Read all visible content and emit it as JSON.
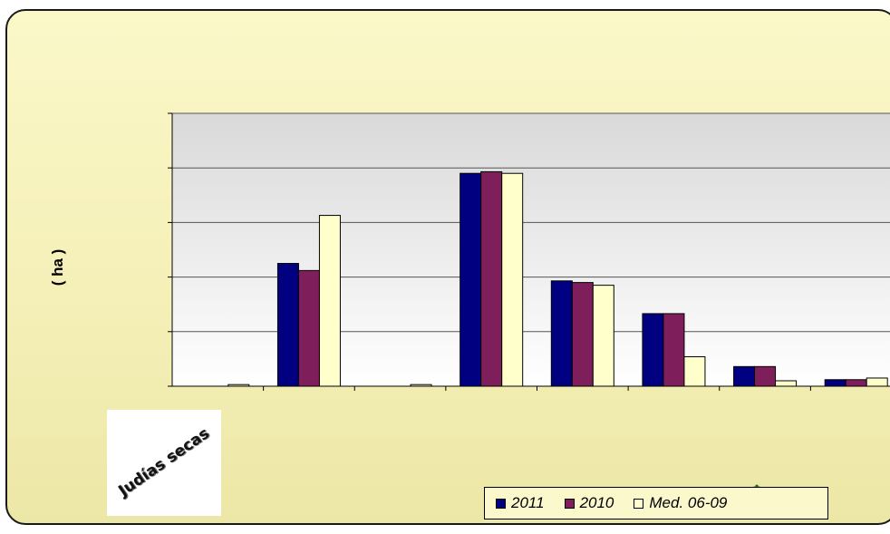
{
  "chart_data": {
    "type": "bar",
    "ylabel": "( ha )",
    "ylim": [
      0,
      5
    ],
    "grid": true,
    "legend_position": "bottom-right",
    "categories": [
      "",
      "",
      "",
      "",
      "",
      "",
      "",
      ""
    ],
    "series": [
      {
        "name": "2011",
        "color": "#000080",
        "values": [
          0,
          2.25,
          0,
          3.9,
          1.93,
          1.33,
          0.36,
          0.12
        ]
      },
      {
        "name": "2010",
        "color": "#7e1f5c",
        "values": [
          0,
          2.12,
          0,
          3.93,
          1.9,
          1.33,
          0.36,
          0.12
        ]
      },
      {
        "name": "Med. 06-09",
        "color": "#ffffcc",
        "values": [
          0.03,
          3.13,
          0.03,
          3.9,
          1.85,
          0.54,
          0.1,
          0.15
        ]
      }
    ]
  },
  "crop_image": {
    "icon": "crop-photo",
    "caption": "Judías secas"
  },
  "legend": {
    "items": [
      "2011",
      "2010",
      "Med. 06-09"
    ]
  }
}
